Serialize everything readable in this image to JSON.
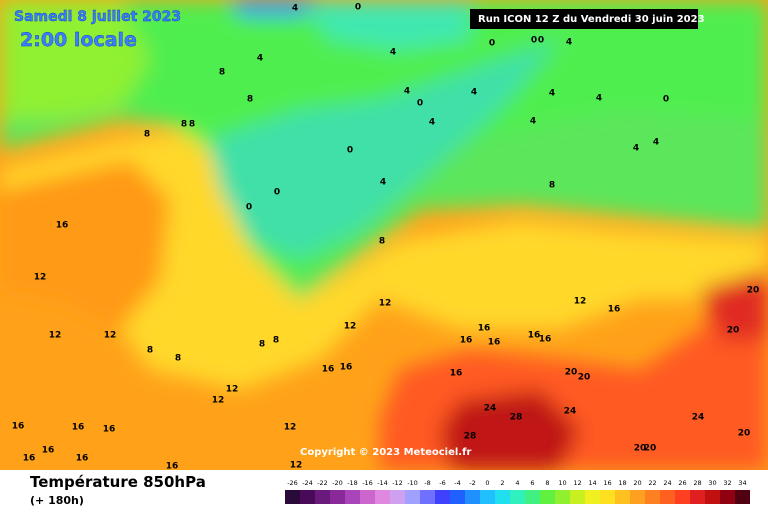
{
  "header": {
    "date": "Samedi 8 juillet 2023",
    "time": "2:00 locale",
    "run": "Run ICON 12 Z du Vendredi 30 juin 2023",
    "copyright": "Copyright © 2023 Meteociel.fr"
  },
  "footer": {
    "title": "Température 850hPa",
    "lead": "(+ 180h)"
  },
  "colorbar": {
    "ticks": [
      -26,
      -24,
      -22,
      -20,
      -18,
      -16,
      -14,
      -12,
      -10,
      -8,
      -6,
      -4,
      -2,
      0,
      2,
      4,
      6,
      8,
      10,
      12,
      14,
      16,
      18,
      20,
      22,
      24,
      26,
      28,
      30,
      32,
      34
    ],
    "colors": [
      "#2a0a3a",
      "#4a0a5a",
      "#6a1a7a",
      "#8a2a9a",
      "#aa44bb",
      "#cc66cc",
      "#e088e0",
      "#d0a0f0",
      "#a0a0ff",
      "#7070ff",
      "#4040ff",
      "#2060ff",
      "#2090ff",
      "#20c0ff",
      "#20e0f0",
      "#30f0c0",
      "#40f080",
      "#60f040",
      "#90f030",
      "#c8f020",
      "#f0f020",
      "#ffe020",
      "#ffc020",
      "#ffa020",
      "#ff8020",
      "#ff6020",
      "#ff4020",
      "#e02020",
      "#c01010",
      "#900010",
      "#500010"
    ]
  },
  "contour_labels": [
    0,
    4,
    0,
    0,
    0,
    4,
    4,
    8,
    4,
    8,
    4,
    0,
    4,
    4,
    4,
    4,
    4,
    0,
    8,
    8,
    8,
    0,
    4,
    0,
    0,
    8,
    4,
    4,
    8,
    16,
    12,
    12,
    12,
    16,
    12,
    12,
    12,
    8,
    8,
    8,
    8,
    16,
    16,
    16,
    16,
    16,
    16,
    16,
    16,
    20,
    20,
    12,
    12,
    12,
    24,
    28,
    24,
    28,
    24,
    20,
    20,
    20,
    20,
    20,
    16,
    16,
    16,
    16,
    16,
    16,
    16,
    12
  ]
}
